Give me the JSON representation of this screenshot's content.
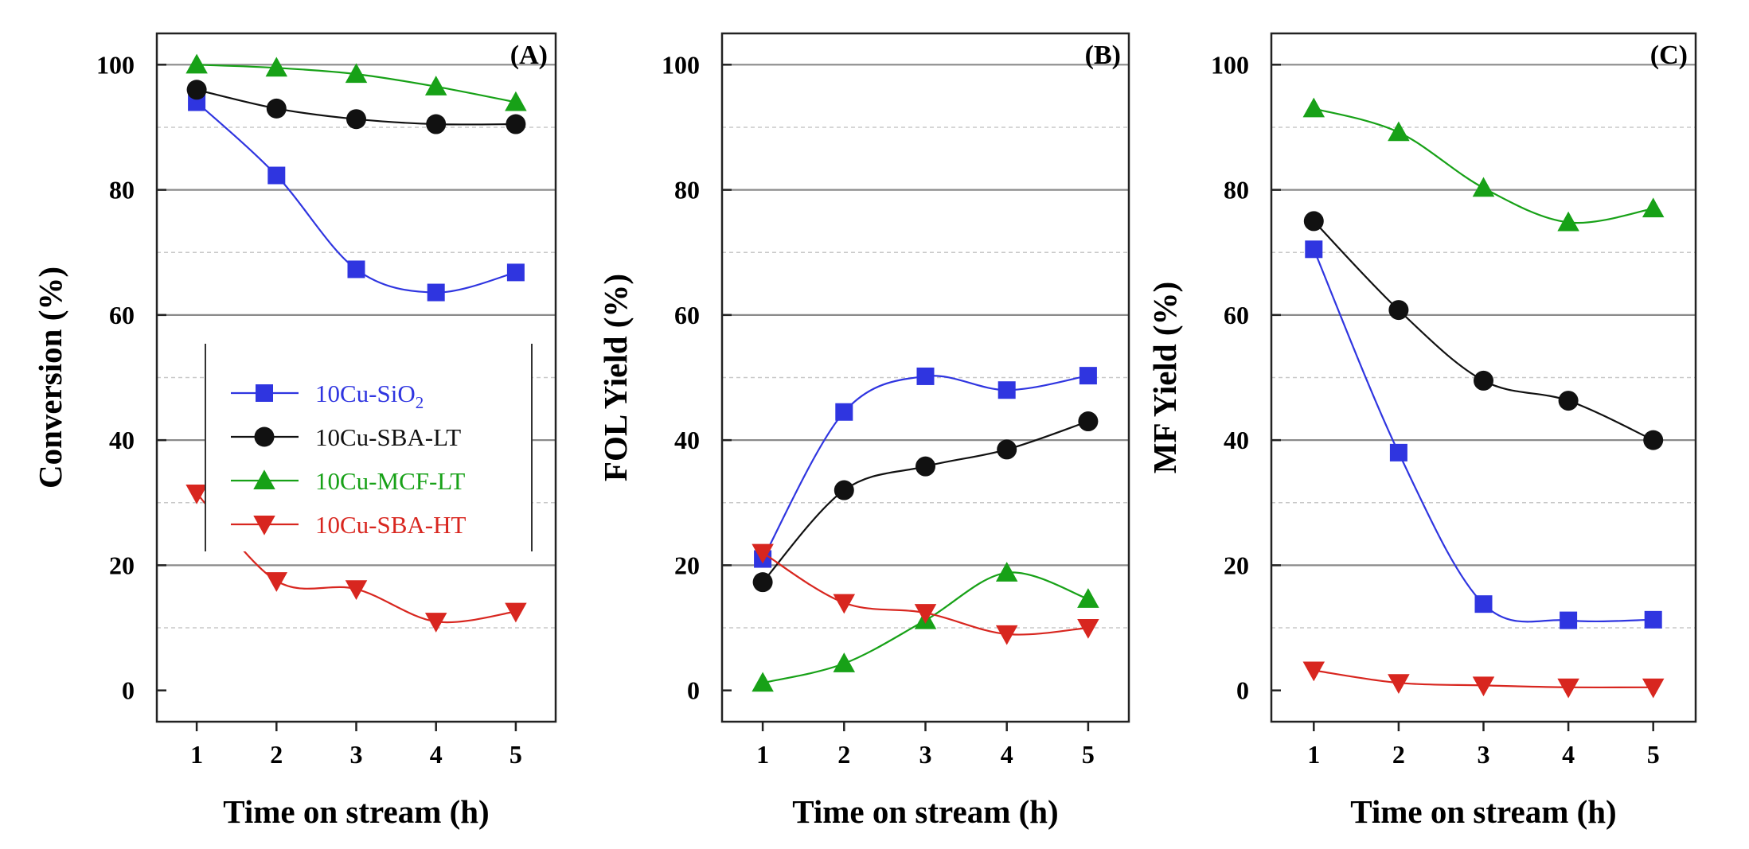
{
  "chart_data": [
    {
      "type": "line",
      "panel_label": "(A)",
      "xlabel": "Time on stream (h)",
      "ylabel": "Conversion (%)",
      "x": [
        1,
        2,
        3,
        4,
        5
      ],
      "xticks": [
        "1",
        "2",
        "3",
        "4",
        "5"
      ],
      "yticks": [
        "0",
        "20",
        "40",
        "60",
        "80",
        "100"
      ],
      "xlim": [
        0.5,
        5.5
      ],
      "ylim": [
        -5,
        105
      ],
      "grid": "horizontal",
      "legend_position": "middle-left",
      "series": [
        {
          "name": "10Cu-SiO",
          "sub": "2",
          "marker": "square",
          "color": "#2f35e0",
          "values": [
            94,
            82.3,
            67.3,
            63.6,
            66.8
          ]
        },
        {
          "name": "10Cu-SBA-LT",
          "sub": "",
          "marker": "circle",
          "color": "#111111",
          "values": [
            96,
            93,
            91.3,
            90.5,
            90.5
          ]
        },
        {
          "name": "10Cu-MCF-LT",
          "sub": "",
          "marker": "triangle-up",
          "color": "#17a117",
          "values": [
            100,
            99.5,
            98.5,
            96.5,
            94
          ]
        },
        {
          "name": "10Cu-SBA-HT",
          "sub": "",
          "marker": "triangle-down",
          "color": "#d8261f",
          "values": [
            31.5,
            17.5,
            16.2,
            11,
            12.6
          ]
        }
      ]
    },
    {
      "type": "line",
      "panel_label": "(B)",
      "xlabel": "Time on stream (h)",
      "ylabel": "FOL Yield (%)",
      "x": [
        1,
        2,
        3,
        4,
        5
      ],
      "xticks": [
        "1",
        "2",
        "3",
        "4",
        "5"
      ],
      "yticks": [
        "0",
        "20",
        "40",
        "60",
        "80",
        "100"
      ],
      "xlim": [
        0.5,
        5.5
      ],
      "ylim": [
        -5,
        105
      ],
      "grid": "horizontal",
      "series": [
        {
          "name": "10Cu-SiO2",
          "marker": "square",
          "color": "#2f35e0",
          "values": [
            21,
            44.5,
            50.2,
            48,
            50.3
          ]
        },
        {
          "name": "10Cu-SBA-LT",
          "marker": "circle",
          "color": "#111111",
          "values": [
            17.3,
            32,
            35.8,
            38.5,
            43
          ]
        },
        {
          "name": "10Cu-MCF-LT",
          "marker": "triangle-up",
          "color": "#17a117",
          "values": [
            1.2,
            4.3,
            11.2,
            18.8,
            14.6
          ]
        },
        {
          "name": "10Cu-SBA-HT",
          "marker": "triangle-down",
          "color": "#d8261f",
          "values": [
            22,
            14,
            12.4,
            9,
            10
          ]
        }
      ]
    },
    {
      "type": "line",
      "panel_label": "(C)",
      "xlabel": "Time on stream (h)",
      "ylabel": "MF Yield (%)",
      "x": [
        1,
        2,
        3,
        4,
        5
      ],
      "xticks": [
        "1",
        "2",
        "3",
        "4",
        "5"
      ],
      "yticks": [
        "0",
        "20",
        "40",
        "60",
        "80",
        "100"
      ],
      "xlim": [
        0.5,
        5.5
      ],
      "ylim": [
        -5,
        105
      ],
      "grid": "horizontal",
      "series": [
        {
          "name": "10Cu-SiO2",
          "marker": "square",
          "color": "#2f35e0",
          "values": [
            70.5,
            38,
            13.8,
            11.2,
            11.3
          ]
        },
        {
          "name": "10Cu-SBA-LT",
          "marker": "circle",
          "color": "#111111",
          "values": [
            75,
            60.8,
            49.5,
            46.3,
            40
          ]
        },
        {
          "name": "10Cu-MCF-LT",
          "marker": "triangle-up",
          "color": "#17a117",
          "values": [
            93,
            89.2,
            80.3,
            74.8,
            77
          ]
        },
        {
          "name": "10Cu-SBA-HT",
          "marker": "triangle-down",
          "color": "#d8261f",
          "values": [
            3.2,
            1.2,
            0.8,
            0.5,
            0.5
          ]
        }
      ]
    }
  ]
}
